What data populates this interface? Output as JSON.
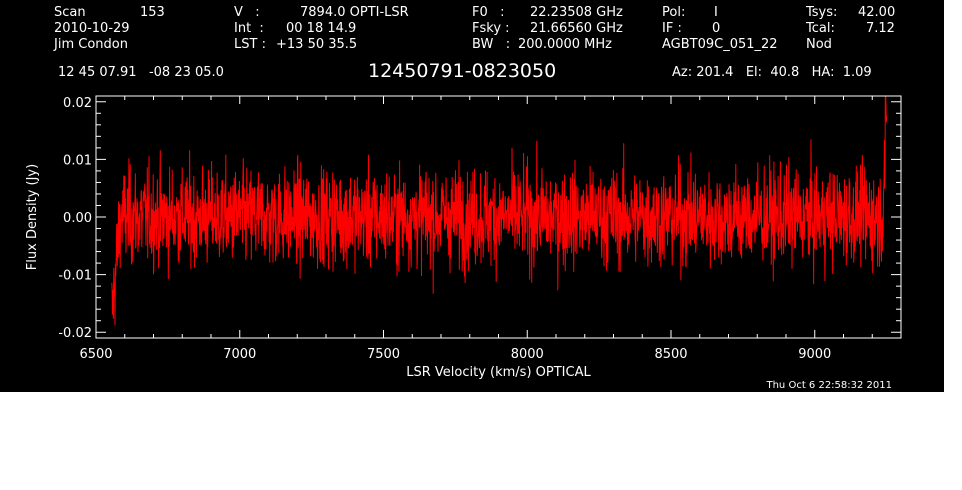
{
  "header": {
    "scan_label": "Scan",
    "scan_value": "153",
    "date": "2010-10-29",
    "observer": "Jim Condon",
    "v_label": "V   :",
    "v_value": "7894.0 OPTI-LSR",
    "int_label": "Int  :",
    "int_value": "00 18 14.9",
    "lst_label": "LST :",
    "lst_value": "+13 50 35.5",
    "f0_label": "F0   :",
    "f0_value": "22.23508 GHz",
    "fsky_label": "Fsky :",
    "fsky_value": "21.66560 GHz",
    "bw_label": "BW   :",
    "bw_value": "200.0000 MHz",
    "pol_label": "Pol:",
    "pol_value": "I",
    "if_label": "IF :",
    "if_value": "0",
    "project": "AGBT09C_051_22",
    "tsys_label": "Tsys:",
    "tsys_value": "42.00",
    "tcal_label": "Tcal:",
    "tcal_value": "7.12",
    "mode": "Nod",
    "coords": "12 45 07.91   -08 23 05.0",
    "source": "12450791-0823050",
    "az_el_ha": "Az: 201.4   El:  40.8   HA:  1.09",
    "timestamp": "Thu Oct  6 22:58:32 2011"
  },
  "chart_data": {
    "type": "line",
    "xlabel": "LSR Velocity (km/s) OPTICAL",
    "ylabel": "Flux Density (Jy)",
    "xlim": [
      6500,
      9300
    ],
    "ylim": [
      -0.021,
      0.021
    ],
    "x_ticks": [
      6500,
      7000,
      7500,
      8000,
      8500,
      9000
    ],
    "x_tick_labels": [
      "6500",
      "7000",
      "7500",
      "8000",
      "8500",
      "9000"
    ],
    "y_ticks": [
      -0.02,
      -0.01,
      0.0,
      0.01,
      0.02
    ],
    "y_tick_labels": [
      "-0.02",
      "-0.01",
      "0.00",
      "0.01",
      "0.02"
    ],
    "series_color": "#ff0000",
    "background_color": "#000000",
    "axis_color": "#ffffff",
    "x_range": [
      6555,
      9250
    ],
    "noise_rms": 0.0042,
    "n_points": 2400,
    "edge_features": [
      {
        "x": 6560,
        "y": -0.017
      },
      {
        "x": 9250,
        "y": 0.017
      }
    ]
  }
}
